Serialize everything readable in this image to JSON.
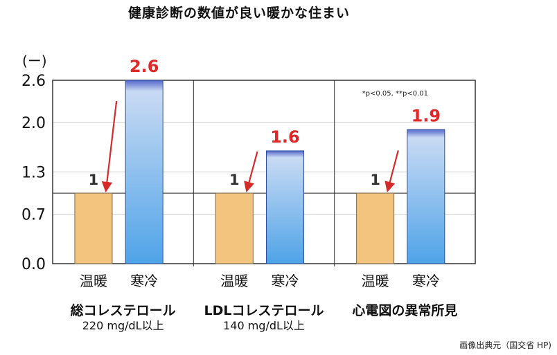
{
  "title": "健康診断の数値が良い暖かな住まい",
  "source_note": "画像出典元（国交省 HP)",
  "chart_data": {
    "type": "bar",
    "unit_label": "(ー)",
    "y_ticks": [
      "2.6",
      "2.0",
      "1.3",
      "0.7",
      "0.0"
    ],
    "ylim": [
      0,
      2.6
    ],
    "baseline": 1,
    "significance_note": "*p<0.05, **p<0.01",
    "categories": [
      "温暖",
      "寒冷"
    ],
    "groups": [
      {
        "title": "総コレステロール",
        "subtitle": "220 mg/dL以上",
        "bars": [
          {
            "category": "温暖",
            "value": 1,
            "label": "1"
          },
          {
            "category": "寒冷",
            "value": 2.6,
            "label": "2.6"
          }
        ]
      },
      {
        "title": "LDLコレステロール",
        "subtitle": "140 mg/dL以上",
        "bars": [
          {
            "category": "温暖",
            "value": 1,
            "label": "1"
          },
          {
            "category": "寒冷",
            "value": 1.6,
            "label": "1.6"
          }
        ]
      },
      {
        "title": "心電図の異常所見",
        "subtitle": "",
        "bars": [
          {
            "category": "温暖",
            "value": 1,
            "label": "1"
          },
          {
            "category": "寒冷",
            "value": 1.9,
            "label": "1.9"
          }
        ]
      }
    ],
    "colors": {
      "warm_fill": "#f2c47e",
      "cold_top": "#c8daf3",
      "cold_bottom": "#4fa3e8",
      "highlight_label": "#e02828",
      "arrow": "#d42a2a",
      "frame": "#333333",
      "grid": "#cccccc"
    }
  }
}
